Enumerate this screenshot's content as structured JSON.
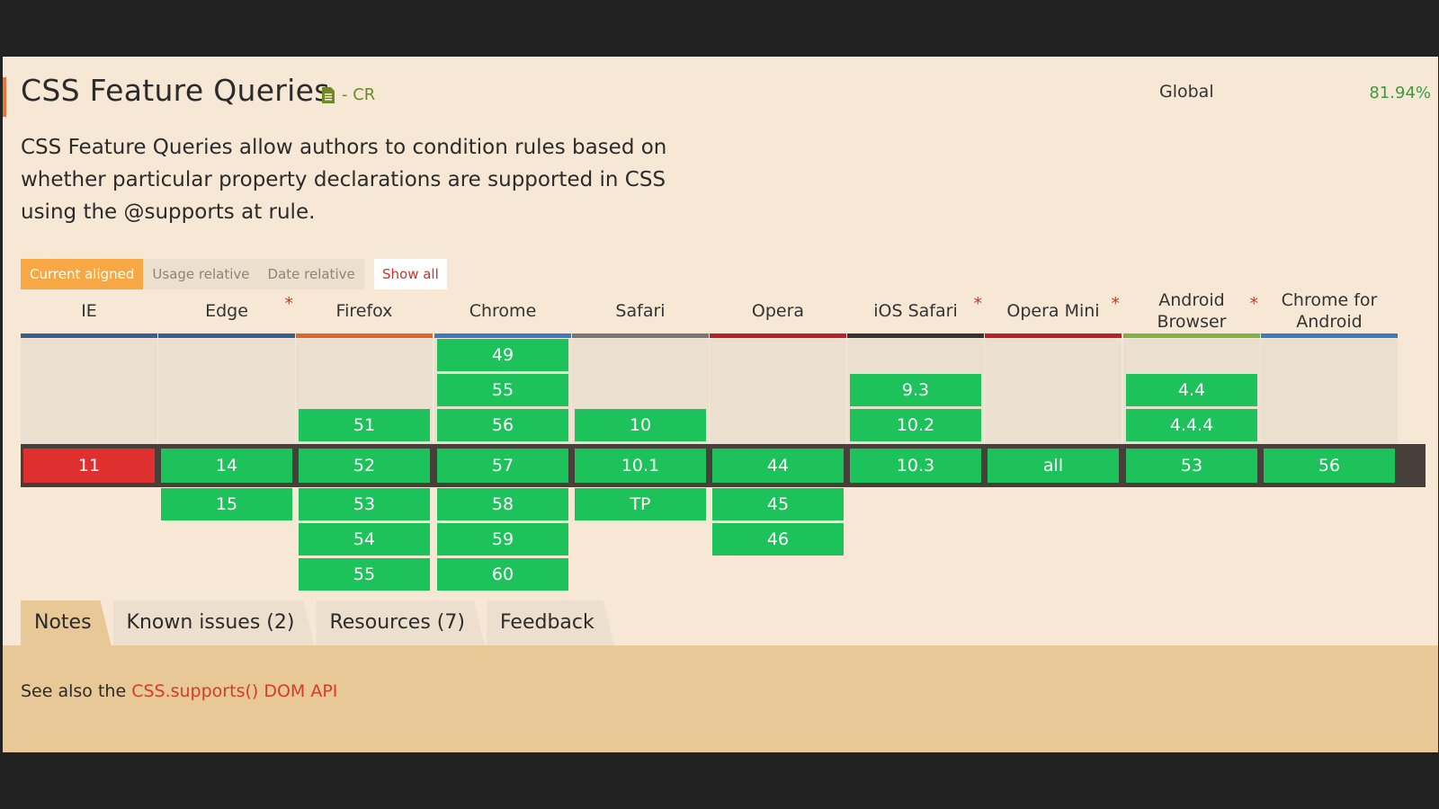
{
  "feature": {
    "title": "CSS Feature Queries",
    "spec_status": "- CR",
    "description": "CSS Feature Queries allow authors to condition rules based on whether particular property declarations are supported in CSS using the @supports at rule.",
    "global_label": "Global",
    "global_percent": "81.94%"
  },
  "view_modes": [
    "Current aligned",
    "Usage relative",
    "Date relative"
  ],
  "show_all_label": "Show all",
  "colors": {
    "supported": "#1ec25a",
    "unsupported": "#e02f2f",
    "accent": "#f7a844",
    "link": "#d63c2a"
  },
  "browsers": [
    {
      "name": "IE",
      "note": "",
      "underline": "#3a5f8f",
      "past": [],
      "current": "11",
      "current_support": "no",
      "future": []
    },
    {
      "name": "Edge",
      "note": "*",
      "underline": "#3a5f8f",
      "past": [],
      "current": "14",
      "current_support": "yes",
      "future": [
        "15"
      ]
    },
    {
      "name": "Firefox",
      "note": "",
      "underline": "#d9692c",
      "past": [
        "51"
      ],
      "current": "52",
      "current_support": "yes",
      "future": [
        "53",
        "54",
        "55"
      ]
    },
    {
      "name": "Chrome",
      "note": "",
      "underline": "#3a7bbf",
      "past": [
        "49",
        "55",
        "56"
      ],
      "current": "57",
      "current_support": "yes",
      "future": [
        "58",
        "59",
        "60"
      ]
    },
    {
      "name": "Safari",
      "note": "",
      "underline": "#777777",
      "past": [
        "10"
      ],
      "current": "10.1",
      "current_support": "yes",
      "future": [
        "TP"
      ]
    },
    {
      "name": "Opera",
      "note": "",
      "underline": "#b8202c",
      "past": [],
      "current": "44",
      "current_support": "yes",
      "future": [
        "45",
        "46"
      ]
    },
    {
      "name": "iOS Safari",
      "note": "*",
      "underline": "#333333",
      "past": [
        "9.3",
        "10.2"
      ],
      "current": "10.3",
      "current_support": "yes",
      "future": []
    },
    {
      "name": "Opera Mini",
      "note": "*",
      "underline": "#b8202c",
      "past": [],
      "current": "all",
      "current_support": "yes",
      "future": []
    },
    {
      "name": "Android Browser",
      "note": "*",
      "underline": "#7cb342",
      "past": [
        "4.4",
        "4.4.4"
      ],
      "current": "53",
      "current_support": "yes",
      "future": []
    },
    {
      "name": "Chrome for Android",
      "note": "",
      "underline": "#3a7bbf",
      "past": [],
      "current": "56",
      "current_support": "yes",
      "future": []
    }
  ],
  "tabs": [
    "Notes",
    "Known issues (2)",
    "Resources (7)",
    "Feedback"
  ],
  "notes": {
    "prefix": "See also the ",
    "link_text": "CSS.supports() DOM API"
  }
}
